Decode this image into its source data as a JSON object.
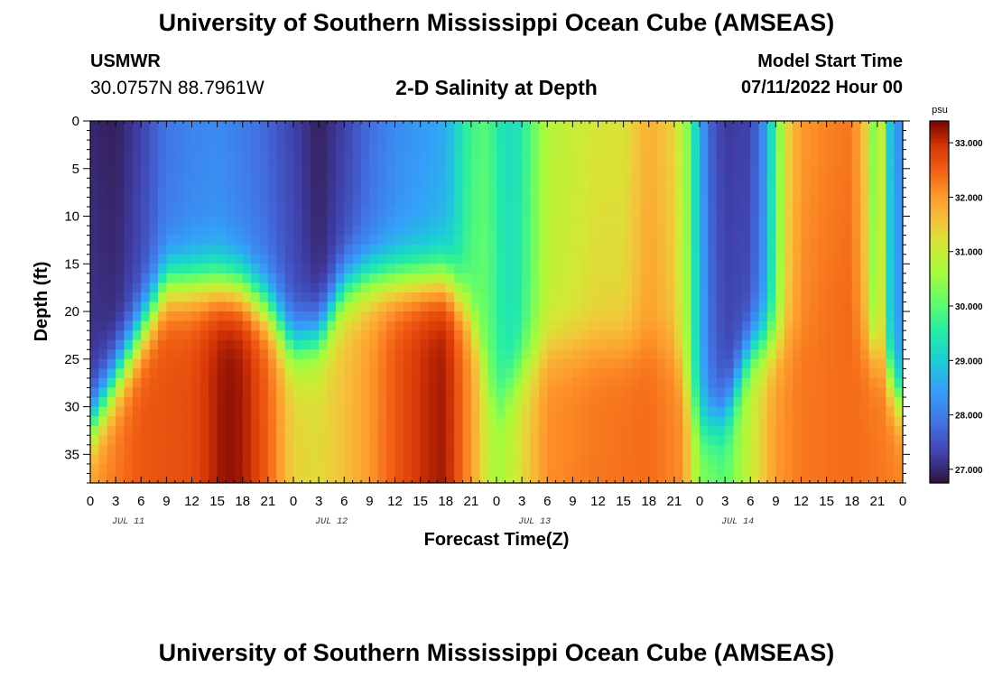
{
  "header": {
    "title": "University of Southern Mississippi Ocean Cube (AMSEAS)",
    "station_name": "USMWR",
    "station_coords": "30.0757N  88.7961W",
    "plot_subtitle": "2-D Salinity at Depth",
    "model_label": "Model Start Time",
    "model_time": "07/11/2022 Hour 00"
  },
  "footer": {
    "title": "University of Southern Mississippi Ocean Cube (AMSEAS)"
  },
  "chart_data": {
    "type": "heatmap",
    "title": "2-D Salinity at Depth",
    "xlabel": "Forecast Time(Z)",
    "ylabel": "Depth (ft)",
    "x_range_hours": [
      0,
      96
    ],
    "x_tick_step_hours": 3,
    "x_tick_labels": [
      "0",
      "3",
      "6",
      "9",
      "12",
      "15",
      "18",
      "21",
      "0",
      "3",
      "6",
      "9",
      "12",
      "15",
      "18",
      "21",
      "0",
      "3",
      "6",
      "9",
      "12",
      "15",
      "18",
      "21",
      "0",
      "3",
      "6",
      "9",
      "12",
      "15",
      "18",
      "21",
      "0"
    ],
    "day_labels": [
      "JUL 11",
      "JUL 12",
      "JUL 13",
      "JUL 14"
    ],
    "y_range_ft": [
      0,
      38
    ],
    "y_tick_values": [
      0,
      5,
      10,
      15,
      20,
      25,
      30,
      35
    ],
    "y_tick_labels": [
      "0",
      "5",
      "10",
      "15",
      "20",
      "25",
      "30",
      "35"
    ],
    "colorbar": {
      "unit": "psu",
      "range": [
        26.75,
        33.4
      ],
      "tick_values": [
        27.0,
        28.0,
        29.0,
        30.0,
        31.0,
        32.0,
        33.0
      ],
      "tick_labels": [
        "27.000",
        "28.000",
        "29.000",
        "30.000",
        "31.000",
        "32.000",
        "33.000"
      ]
    },
    "surface_salinity_psu": [
      {
        "hour": 0,
        "value": 27.0
      },
      {
        "hour": 3,
        "value": 26.9
      },
      {
        "hour": 6,
        "value": 27.3
      },
      {
        "hour": 9,
        "value": 27.9
      },
      {
        "hour": 12,
        "value": 28.1
      },
      {
        "hour": 15,
        "value": 28.2
      },
      {
        "hour": 18,
        "value": 28.0
      },
      {
        "hour": 21,
        "value": 27.7
      },
      {
        "hour": 24,
        "value": 27.3
      },
      {
        "hour": 27,
        "value": 26.9
      },
      {
        "hour": 30,
        "value": 27.3
      },
      {
        "hour": 33,
        "value": 27.8
      },
      {
        "hour": 36,
        "value": 28.2
      },
      {
        "hour": 39,
        "value": 28.4
      },
      {
        "hour": 42,
        "value": 28.6
      },
      {
        "hour": 43.5,
        "value": 29.2
      },
      {
        "hour": 45,
        "value": 29.8
      },
      {
        "hour": 47,
        "value": 30.0
      },
      {
        "hour": 48,
        "value": 29.5
      },
      {
        "hour": 50,
        "value": 29.2
      },
      {
        "hour": 51,
        "value": 29.5
      },
      {
        "hour": 54,
        "value": 30.8
      },
      {
        "hour": 57,
        "value": 31.0
      },
      {
        "hour": 60,
        "value": 31.2
      },
      {
        "hour": 63,
        "value": 31.2
      },
      {
        "hour": 66,
        "value": 31.8
      },
      {
        "hour": 69,
        "value": 31.4
      },
      {
        "hour": 70.5,
        "value": 30.4
      },
      {
        "hour": 72,
        "value": 28.6
      },
      {
        "hour": 73.5,
        "value": 27.6
      },
      {
        "hour": 75,
        "value": 27.2
      },
      {
        "hour": 78,
        "value": 27.3
      },
      {
        "hour": 80,
        "value": 28.5
      },
      {
        "hour": 81,
        "value": 30.0
      },
      {
        "hour": 82.5,
        "value": 31.4
      },
      {
        "hour": 84,
        "value": 32.0
      },
      {
        "hour": 87,
        "value": 32.2
      },
      {
        "hour": 90,
        "value": 32.3
      },
      {
        "hour": 91.5,
        "value": 31.5
      },
      {
        "hour": 92.5,
        "value": 30.4
      },
      {
        "hour": 93.5,
        "value": 30.9
      },
      {
        "hour": 94.5,
        "value": 28.9
      },
      {
        "hour": 96,
        "value": 28.0
      }
    ],
    "bottom_salinity_psu": [
      {
        "hour": 0,
        "value": 32.0
      },
      {
        "hour": 6,
        "value": 32.6
      },
      {
        "hour": 12,
        "value": 32.7
      },
      {
        "hour": 16,
        "value": 33.3
      },
      {
        "hour": 18,
        "value": 33.2
      },
      {
        "hour": 21,
        "value": 32.5
      },
      {
        "hour": 24,
        "value": 31.4
      },
      {
        "hour": 27,
        "value": 31.3
      },
      {
        "hour": 30,
        "value": 31.6
      },
      {
        "hour": 33,
        "value": 32.0
      },
      {
        "hour": 36,
        "value": 32.6
      },
      {
        "hour": 40,
        "value": 33.1
      },
      {
        "hour": 42,
        "value": 33.2
      },
      {
        "hour": 45,
        "value": 32.0
      },
      {
        "hour": 47,
        "value": 31.0
      },
      {
        "hour": 48,
        "value": 30.6
      },
      {
        "hour": 50,
        "value": 31.0
      },
      {
        "hour": 54,
        "value": 32.1
      },
      {
        "hour": 60,
        "value": 32.3
      },
      {
        "hour": 66,
        "value": 32.4
      },
      {
        "hour": 70,
        "value": 32.1
      },
      {
        "hour": 72,
        "value": 30.4
      },
      {
        "hour": 75,
        "value": 30.0
      },
      {
        "hour": 78,
        "value": 31.0
      },
      {
        "hour": 81,
        "value": 32.0
      },
      {
        "hour": 84,
        "value": 32.3
      },
      {
        "hour": 90,
        "value": 32.4
      },
      {
        "hour": 96,
        "value": 32.2
      }
    ],
    "halocline_depth_ft": [
      {
        "hour": 0,
        "value": 32
      },
      {
        "hour": 3,
        "value": 27
      },
      {
        "hour": 6,
        "value": 22
      },
      {
        "hour": 9,
        "value": 17
      },
      {
        "hour": 12,
        "value": 17
      },
      {
        "hour": 15,
        "value": 17
      },
      {
        "hour": 18,
        "value": 17.5
      },
      {
        "hour": 21,
        "value": 19.5
      },
      {
        "hour": 24,
        "value": 23.5
      },
      {
        "hour": 27,
        "value": 22.5
      },
      {
        "hour": 30,
        "value": 17.5
      },
      {
        "hour": 33,
        "value": 16.5
      },
      {
        "hour": 36,
        "value": 16.5
      },
      {
        "hour": 42,
        "value": 16.5
      },
      {
        "hour": 45,
        "value": 20
      },
      {
        "hour": 48,
        "value": 30
      },
      {
        "hour": 51,
        "value": 26
      },
      {
        "hour": 54,
        "value": 24
      },
      {
        "hour": 60,
        "value": 23.5
      },
      {
        "hour": 66,
        "value": 23.5
      },
      {
        "hour": 69,
        "value": 24
      },
      {
        "hour": 72,
        "value": 32
      },
      {
        "hour": 75,
        "value": 31
      },
      {
        "hour": 78,
        "value": 24
      },
      {
        "hour": 81,
        "value": 23
      },
      {
        "hour": 84,
        "value": 23
      },
      {
        "hour": 90,
        "value": 23
      },
      {
        "hour": 93,
        "value": 24
      },
      {
        "hour": 96,
        "value": 30
      }
    ]
  }
}
